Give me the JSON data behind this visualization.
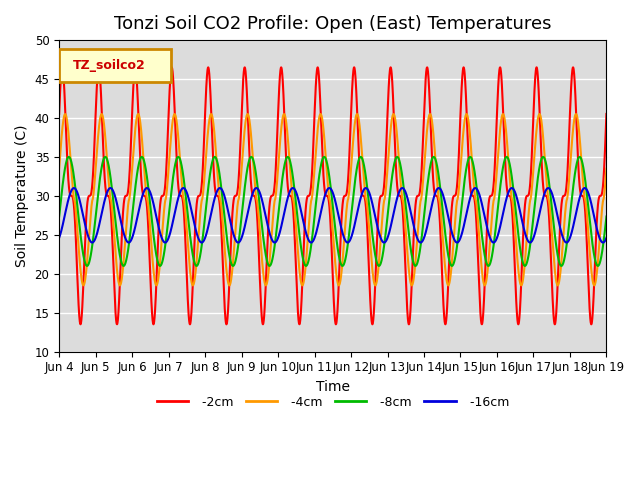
{
  "title": "Tonzi Soil CO2 Profile: Open (East) Temperatures",
  "xlabel": "Time",
  "ylabel": "Soil Temperature (C)",
  "ylim": [
    10,
    50
  ],
  "xlim_days": [
    0,
    15
  ],
  "background_color": "#dcdcdc",
  "grid_color": "#ffffff",
  "series": {
    "-2cm": {
      "color": "#ff0000",
      "amplitude": 16.5,
      "mean": 30.0,
      "phase_shift": 0.0,
      "sharpness": 3.0
    },
    "-4cm": {
      "color": "#ff9900",
      "amplitude": 11.0,
      "mean": 29.5,
      "phase_shift": 0.08,
      "sharpness": 1.5
    },
    "-8cm": {
      "color": "#00bb00",
      "amplitude": 7.0,
      "mean": 28.0,
      "phase_shift": 0.18,
      "sharpness": 1.0
    },
    "-16cm": {
      "color": "#0000dd",
      "amplitude": 3.5,
      "mean": 27.5,
      "phase_shift": 0.32,
      "sharpness": 1.0
    }
  },
  "x_tick_labels": [
    "Jun 4",
    "Jun 5",
    "Jun 6",
    "Jun 7",
    "Jun 8",
    "Jun 9",
    "Jun 10",
    "Jun 11",
    "Jun 12",
    "Jun 13",
    "Jun 14",
    "Jun 15",
    "Jun 16",
    "Jun 17",
    "Jun 18",
    "Jun 19"
  ],
  "legend_label": "TZ_soilco2",
  "legend_label_color": "#cc0000",
  "legend_box_color": "#ffffcc",
  "legend_box_edge_color": "#cc8800",
  "title_fontsize": 13,
  "axis_label_fontsize": 10,
  "tick_fontsize": 8.5,
  "legend_fontsize": 9
}
